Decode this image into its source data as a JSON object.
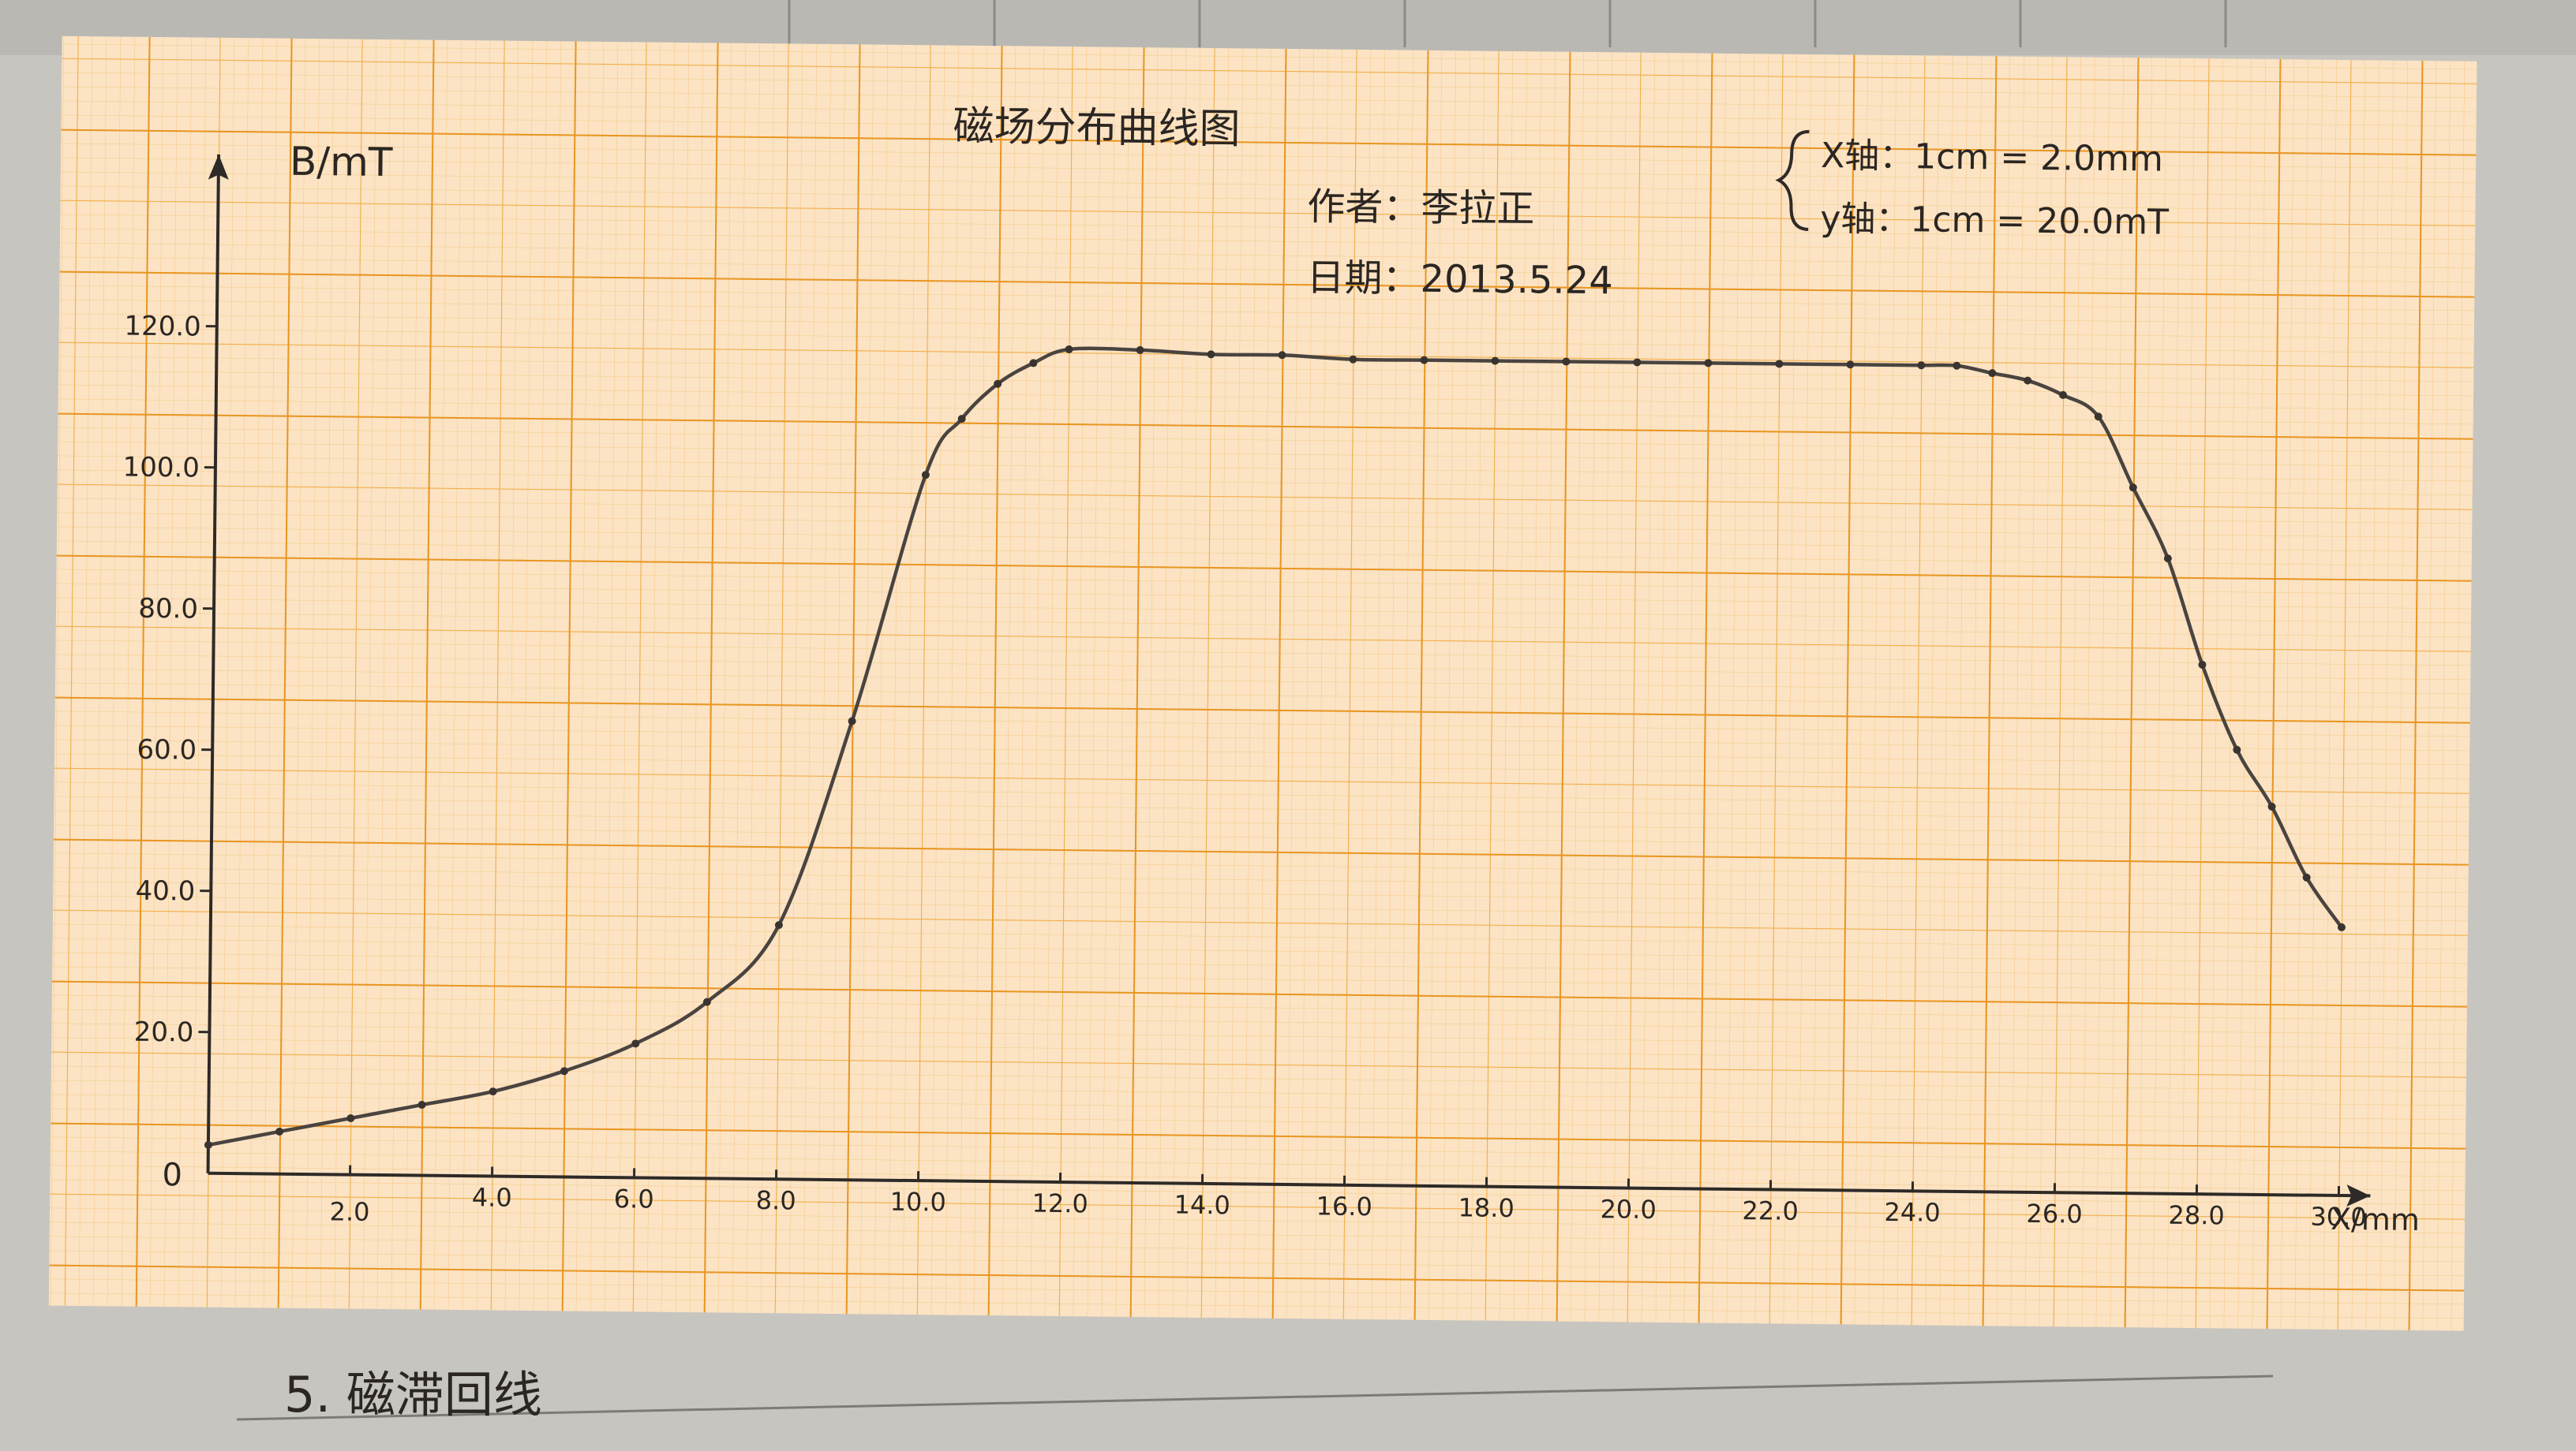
{
  "page": {
    "footer_heading": "5. 磁滞回线"
  },
  "chart_data": {
    "type": "line",
    "title": "磁场分布曲线图",
    "author_label": "作者：李拉正",
    "date_label": "日期：2013.5.24",
    "scale_note": [
      "X轴：1cm = 2.0mm",
      "y轴：1cm = 20.0mT"
    ],
    "xlabel": "X/mm",
    "ylabel": "B/mT",
    "xlim": [
      0,
      31
    ],
    "ylim": [
      0,
      125
    ],
    "x_ticks": [
      2.0,
      4.0,
      6.0,
      8.0,
      10.0,
      12.0,
      14.0,
      16.0,
      18.0,
      20.0,
      22.0,
      24.0,
      26.0,
      28.0,
      30.0
    ],
    "x_tick_labels": [
      "2.0",
      "4.0",
      "6.0",
      "8.0",
      "10.0",
      "12.0",
      "14.0",
      "16.0",
      "18.0",
      "20.0",
      "22.0",
      "24.0",
      "26.0",
      "28.0",
      "30.0"
    ],
    "y_ticks": [
      20.0,
      40.0,
      60.0,
      80.0,
      100.0,
      120.0
    ],
    "y_tick_labels": [
      "20.0",
      "40.0",
      "60.0",
      "80.0",
      "100.0",
      "120.0"
    ],
    "origin_label": "0",
    "grid": true,
    "series": [
      {
        "x": [
          0,
          1,
          2,
          3,
          4,
          5,
          6,
          7,
          8,
          9,
          10,
          10.5,
          11,
          11.5,
          12,
          13,
          14,
          15,
          16,
          17,
          18,
          19,
          20,
          21,
          22,
          23,
          24,
          24.5,
          25,
          25.5,
          26,
          26.5,
          27,
          27.5,
          28,
          28.5,
          29,
          29.5,
          30
        ],
        "values": [
          4,
          6,
          8,
          10,
          12,
          15,
          19,
          25,
          36,
          65,
          100,
          108,
          113,
          116,
          118,
          118,
          117.5,
          117.5,
          117,
          117,
          117,
          117,
          117,
          117,
          117,
          117,
          117,
          117,
          116,
          115,
          113,
          110,
          100,
          90,
          75,
          63,
          55,
          45,
          38
        ]
      }
    ]
  }
}
